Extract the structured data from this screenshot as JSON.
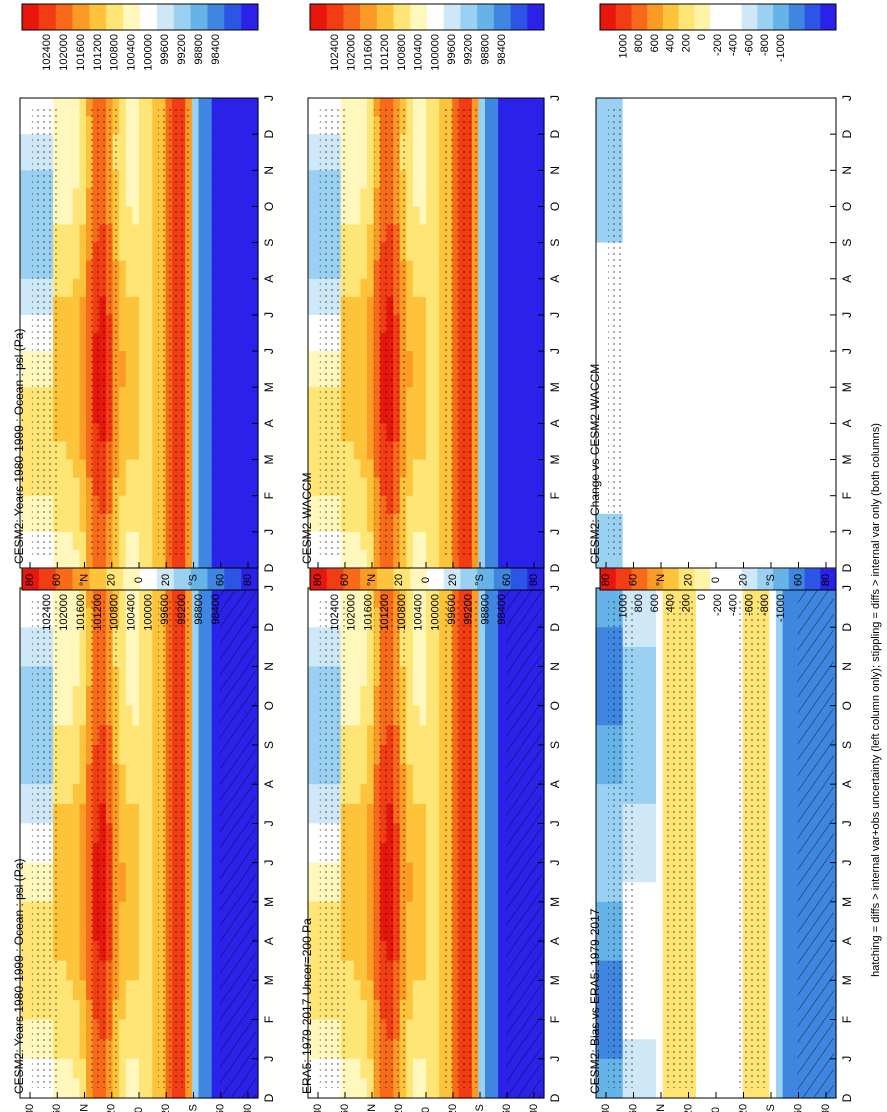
{
  "figure": {
    "footnote": "hatching = diffs > internal var+obs uncertainty (left column only); stippling = diffs > internal var only (both columns)"
  },
  "chart_data": [
    {
      "type": "heatmap",
      "panel": "top-left",
      "title": "CESM2: Years 1980-1999 : Ocean : psl (Pa)",
      "months": [
        "D",
        "J",
        "F",
        "M",
        "A",
        "M",
        "J",
        "J",
        "A",
        "S",
        "O",
        "N",
        "D",
        "J"
      ],
      "lat_ticks": [
        "80",
        "60",
        "°N",
        "20",
        "0",
        "20",
        "°S",
        "60",
        "80"
      ],
      "colorbar": [
        "102400",
        "102000",
        "101600",
        "101200",
        "100800",
        "100400",
        "100000",
        "99600",
        "99200",
        "98800",
        "98400"
      ],
      "mode": "abs",
      "hatching": true
    },
    {
      "type": "heatmap",
      "panel": "top-right",
      "title": "CESM2: Years 1980-1999 : Ocean : psl (Pa)",
      "months": [
        "D",
        "J",
        "F",
        "M",
        "A",
        "M",
        "J",
        "J",
        "A",
        "S",
        "O",
        "N",
        "D",
        "J"
      ],
      "lat_ticks": [
        "80",
        "60",
        "°N",
        "20",
        "0",
        "20",
        "°S",
        "60",
        "80"
      ],
      "colorbar": [
        "102400",
        "102000",
        "101600",
        "101200",
        "100800",
        "100400",
        "100000",
        "99600",
        "99200",
        "98800",
        "98400"
      ],
      "mode": "abs",
      "hatching": false
    },
    {
      "type": "heatmap",
      "panel": "middle-left",
      "title": "ERA5: 1979-2017 Uncer=200 Pa",
      "months": [
        "D",
        "J",
        "F",
        "M",
        "A",
        "M",
        "J",
        "J",
        "A",
        "S",
        "O",
        "N",
        "D",
        "J"
      ],
      "lat_ticks": [
        "80",
        "60",
        "°N",
        "20",
        "0",
        "20",
        "°S",
        "60",
        "80"
      ],
      "colorbar": [
        "102400",
        "102000",
        "101600",
        "101200",
        "100800",
        "100400",
        "100000",
        "99600",
        "99200",
        "98800",
        "98400"
      ],
      "mode": "abs",
      "hatching": true
    },
    {
      "type": "heatmap",
      "panel": "middle-right",
      "title": "CESM2-WACCM",
      "months": [
        "D",
        "J",
        "F",
        "M",
        "A",
        "M",
        "J",
        "J",
        "A",
        "S",
        "O",
        "N",
        "D",
        "J"
      ],
      "lat_ticks": [
        "80",
        "60",
        "°N",
        "20",
        "0",
        "20",
        "°S",
        "60",
        "80"
      ],
      "colorbar": [
        "102400",
        "102000",
        "101600",
        "101200",
        "100800",
        "100400",
        "100000",
        "99600",
        "99200",
        "98800",
        "98400"
      ],
      "mode": "abs",
      "hatching": false
    },
    {
      "type": "heatmap",
      "panel": "bottom-left",
      "title": "CESM2: Bias vs ERA5: 1979-2017",
      "months": [
        "D",
        "J",
        "F",
        "M",
        "A",
        "M",
        "J",
        "J",
        "A",
        "S",
        "O",
        "N",
        "D",
        "J"
      ],
      "lat_ticks": [
        "80",
        "60",
        "°N",
        "20",
        "0",
        "20",
        "°S",
        "60",
        "80"
      ],
      "colorbar": [
        "1000",
        "800",
        "600",
        "400",
        "200",
        "0",
        "-200",
        "-400",
        "-600",
        "-800",
        "-1000"
      ],
      "mode": "bias",
      "hatching": true
    },
    {
      "type": "heatmap",
      "panel": "bottom-right",
      "title": "CESM2: Change vs CESM2-WACCM",
      "months": [
        "D",
        "J",
        "F",
        "M",
        "A",
        "M",
        "J",
        "J",
        "A",
        "S",
        "O",
        "N",
        "D",
        "J"
      ],
      "lat_ticks": [
        "80",
        "60",
        "°N",
        "20",
        "0",
        "20",
        "°S",
        "60",
        "80"
      ],
      "colorbar": [
        "1000",
        "800",
        "600",
        "400",
        "200",
        "0",
        "-200",
        "-400",
        "-600",
        "-800",
        "-1000"
      ],
      "mode": "change",
      "hatching": false
    }
  ]
}
